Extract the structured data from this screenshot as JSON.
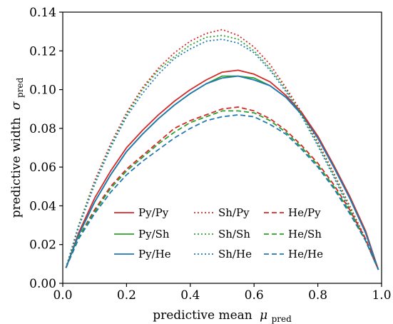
{
  "chart_data": {
    "type": "line",
    "xlabel": "predictive mean",
    "xlabel_symbol": "μ",
    "xlabel_subscript": "pred",
    "ylabel": "predictive width",
    "ylabel_symbol": "σ",
    "ylabel_subscript": "pred",
    "xlim": [
      0.0,
      1.0
    ],
    "ylim": [
      0.0,
      0.14
    ],
    "xticks": [
      "0.0",
      "0.2",
      "0.4",
      "0.6",
      "0.8",
      "1.0"
    ],
    "yticks": [
      "0.00",
      "0.02",
      "0.04",
      "0.06",
      "0.08",
      "0.10",
      "0.12",
      "0.14"
    ],
    "grid": false,
    "legend_position": "bottom-center",
    "x": [
      0.01,
      0.05,
      0.1,
      0.15,
      0.2,
      0.25,
      0.3,
      0.35,
      0.4,
      0.45,
      0.5,
      0.55,
      0.6,
      0.65,
      0.7,
      0.75,
      0.8,
      0.85,
      0.9,
      0.95,
      0.99
    ],
    "series": [
      {
        "name": "Py/Py",
        "color": "#d62728",
        "dash": "solid",
        "values": [
          0.008,
          0.026,
          0.044,
          0.058,
          0.07,
          0.079,
          0.087,
          0.094,
          0.1,
          0.105,
          0.109,
          0.11,
          0.108,
          0.104,
          0.097,
          0.088,
          0.076,
          0.061,
          0.045,
          0.027,
          0.007
        ]
      },
      {
        "name": "Py/Sh",
        "color": "#2ca02c",
        "dash": "solid",
        "values": [
          0.008,
          0.025,
          0.042,
          0.056,
          0.068,
          0.077,
          0.085,
          0.092,
          0.098,
          0.103,
          0.107,
          0.107,
          0.106,
          0.102,
          0.096,
          0.087,
          0.075,
          0.06,
          0.044,
          0.026,
          0.007
        ]
      },
      {
        "name": "Py/He",
        "color": "#1f77b4",
        "dash": "solid",
        "values": [
          0.008,
          0.025,
          0.042,
          0.056,
          0.068,
          0.077,
          0.085,
          0.092,
          0.098,
          0.103,
          0.106,
          0.107,
          0.105,
          0.102,
          0.096,
          0.087,
          0.075,
          0.06,
          0.044,
          0.026,
          0.007
        ]
      },
      {
        "name": "Sh/Py",
        "color": "#d62728",
        "dash": "dotted",
        "values": [
          0.008,
          0.03,
          0.053,
          0.072,
          0.088,
          0.101,
          0.111,
          0.119,
          0.125,
          0.129,
          0.131,
          0.128,
          0.122,
          0.113,
          0.101,
          0.088,
          0.073,
          0.057,
          0.04,
          0.023,
          0.007
        ]
      },
      {
        "name": "Sh/Sh",
        "color": "#2ca02c",
        "dash": "dotted",
        "values": [
          0.008,
          0.03,
          0.052,
          0.071,
          0.087,
          0.1,
          0.11,
          0.117,
          0.123,
          0.127,
          0.128,
          0.126,
          0.12,
          0.111,
          0.1,
          0.087,
          0.072,
          0.056,
          0.039,
          0.022,
          0.007
        ]
      },
      {
        "name": "Sh/He",
        "color": "#1f77b4",
        "dash": "dotted",
        "values": [
          0.008,
          0.029,
          0.051,
          0.07,
          0.086,
          0.098,
          0.108,
          0.116,
          0.121,
          0.125,
          0.126,
          0.124,
          0.119,
          0.11,
          0.099,
          0.086,
          0.071,
          0.055,
          0.038,
          0.022,
          0.007
        ]
      },
      {
        "name": "He/Py",
        "color": "#d62728",
        "dash": "dashed",
        "values": [
          0.008,
          0.024,
          0.038,
          0.05,
          0.059,
          0.066,
          0.073,
          0.08,
          0.084,
          0.087,
          0.09,
          0.091,
          0.089,
          0.085,
          0.079,
          0.071,
          0.062,
          0.051,
          0.038,
          0.023,
          0.007
        ]
      },
      {
        "name": "He/Sh",
        "color": "#2ca02c",
        "dash": "dashed",
        "values": [
          0.008,
          0.024,
          0.037,
          0.049,
          0.058,
          0.065,
          0.072,
          0.078,
          0.083,
          0.086,
          0.089,
          0.089,
          0.088,
          0.084,
          0.078,
          0.07,
          0.061,
          0.05,
          0.037,
          0.022,
          0.007
        ]
      },
      {
        "name": "He/He",
        "color": "#1f77b4",
        "dash": "dashed",
        "values": [
          0.008,
          0.023,
          0.036,
          0.047,
          0.056,
          0.063,
          0.069,
          0.075,
          0.08,
          0.084,
          0.086,
          0.087,
          0.086,
          0.082,
          0.077,
          0.069,
          0.06,
          0.049,
          0.036,
          0.022,
          0.007
        ]
      }
    ]
  }
}
